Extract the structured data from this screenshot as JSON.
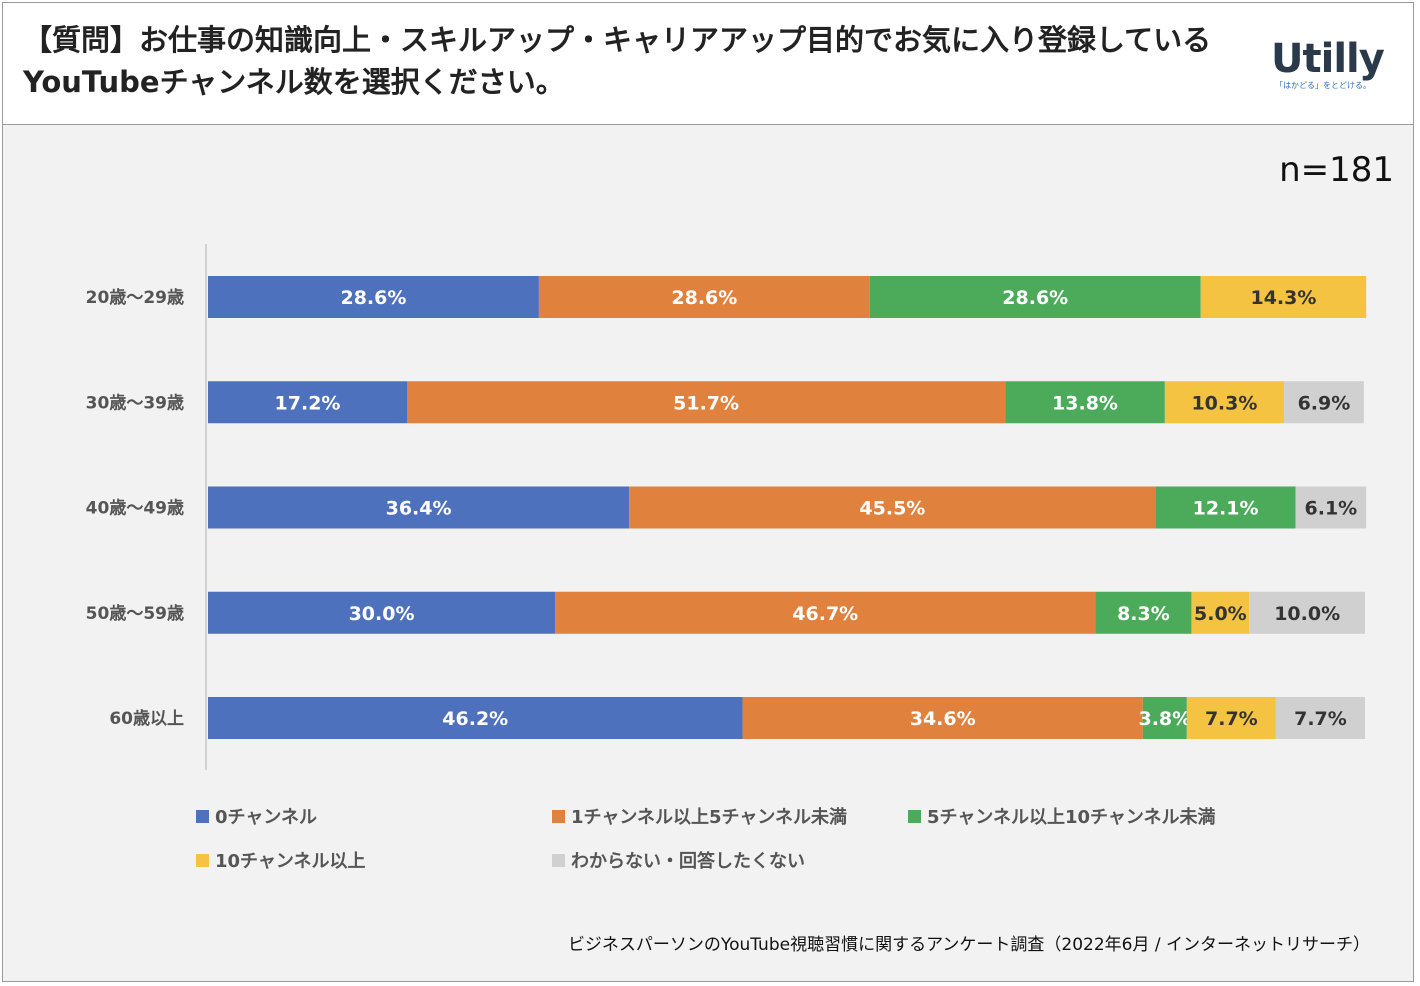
{
  "header": {
    "title": "【質問】お仕事の知識向上・スキルアップ・キャリアアップ目的でお気に入り登録しているYouTubeチャンネル数を選択ください。",
    "logo_text": "Utilly",
    "logo_tagline": "「はかどる」をとどける。"
  },
  "sample_size": "n=181",
  "source": "ビジネスパーソンのYouTube視聴習慣に関するアンケート調査（2022年6月 / インターネットリサーチ）",
  "colors": {
    "series": [
      "#4e71be",
      "#e0823d",
      "#4bab5b",
      "#f5c342",
      "#d0d0d0"
    ],
    "label_text": [
      "#ffffff",
      "#ffffff",
      "#ffffff",
      "#333333",
      "#333333"
    ]
  },
  "chart_data": {
    "type": "bar",
    "orientation": "horizontal",
    "stacked": true,
    "unit": "%",
    "xlim": [
      0,
      100
    ],
    "categories": [
      "20歳～29歳",
      "30歳～39歳",
      "40歳～49歳",
      "50歳～59歳",
      "60歳以上"
    ],
    "series": [
      {
        "name": "0チャンネル",
        "values": [
          28.6,
          17.2,
          36.4,
          30.0,
          46.2
        ],
        "labels": [
          "28.6%",
          "17.2%",
          "36.4%",
          "30.0%",
          "46.2%"
        ]
      },
      {
        "name": "1チャンネル以上5チャンネル未満",
        "values": [
          28.6,
          51.7,
          45.5,
          46.7,
          34.6
        ],
        "labels": [
          "28.6%",
          "51.7%",
          "45.5%",
          "46.7%",
          "34.6%"
        ]
      },
      {
        "name": "5チャンネル以上10チャンネル未満",
        "values": [
          28.6,
          13.8,
          12.1,
          8.3,
          3.8
        ],
        "labels": [
          "28.6%",
          "13.8%",
          "12.1%",
          "8.3%",
          "3.8%"
        ]
      },
      {
        "name": "10チャンネル以上",
        "values": [
          14.3,
          10.3,
          0,
          5.0,
          7.7
        ],
        "labels": [
          "14.3%",
          "10.3%",
          "",
          "5.0%",
          "7.7%"
        ]
      },
      {
        "name": "わからない・回答したくない",
        "values": [
          0,
          6.9,
          6.1,
          10.0,
          7.7
        ],
        "labels": [
          "",
          "6.9%",
          "6.1%",
          "10.0%",
          "7.7%"
        ]
      }
    ],
    "legend_position": "bottom",
    "grid": false
  }
}
